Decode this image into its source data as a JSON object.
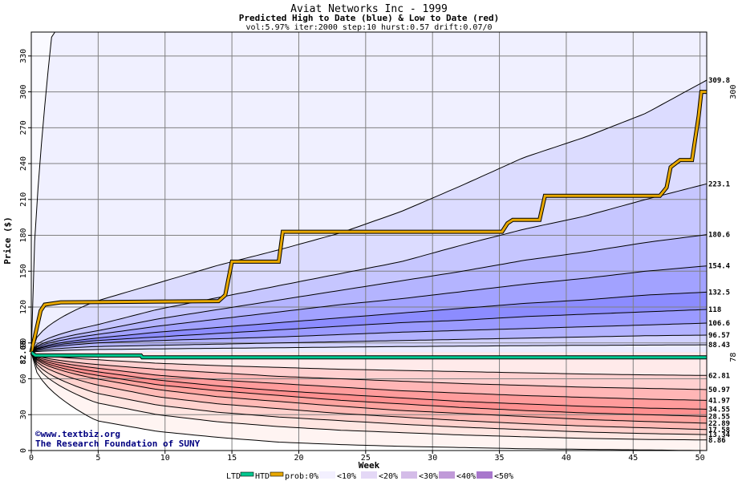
{
  "chart_data": {
    "type": "area",
    "title": "Aviat Networks Inc - 1999",
    "subtitle": "Predicted High to Date (blue) &  Low to Date (red)",
    "params": "vol:5.97% iter:2000 step:10 hurst:0.57 drift:0.07/0",
    "xlabel": "Week",
    "ylabel": "Price ($)",
    "xlim": [
      0,
      50.5
    ],
    "ylim": [
      0,
      350
    ],
    "x_ticks": [
      0,
      5,
      10,
      15,
      20,
      25,
      30,
      35,
      40,
      45,
      50
    ],
    "y_ticks": [
      0,
      30,
      60,
      90,
      120,
      150,
      180,
      210,
      240,
      270,
      300,
      330
    ],
    "start_price": 82.08,
    "start_label": "82.08",
    "grid": true,
    "high_curves": [
      {
        "end_label": "309.8",
        "values": [
          82.08,
          125,
          140,
          155,
          168,
          182,
          200,
          222,
          245,
          262,
          282,
          309.8
        ]
      },
      {
        "end_label": "223.1",
        "values": [
          82.08,
          105,
          118,
          128,
          138,
          148,
          158,
          172,
          185,
          196,
          210,
          223.1
        ]
      },
      {
        "end_label": "180.6",
        "values": [
          82.08,
          100,
          110,
          118,
          126,
          134,
          142,
          150,
          159,
          166,
          174,
          180.6
        ]
      },
      {
        "end_label": "154.4",
        "values": [
          82.08,
          97,
          104,
          110,
          116,
          122,
          127,
          133,
          139,
          144,
          150,
          154.4
        ]
      },
      {
        "end_label": "132.5",
        "values": [
          82.08,
          94,
          99,
          103,
          107,
          111,
          115,
          119,
          123,
          126,
          130,
          132.5
        ]
      },
      {
        "end_label": "118",
        "values": [
          82.08,
          92,
          95,
          98,
          101,
          104,
          107,
          109,
          112,
          114,
          116,
          118
        ]
      },
      {
        "end_label": "106.6",
        "values": [
          82.08,
          90,
          92,
          93.5,
          95,
          97,
          99,
          100.5,
          102,
          103.5,
          105,
          106.6
        ]
      },
      {
        "end_label": "96.57",
        "values": [
          82.08,
          87,
          88,
          89,
          90,
          91,
          92,
          93,
          94,
          95,
          96,
          96.57
        ]
      },
      {
        "end_label": "88.43",
        "values": [
          82.08,
          84.5,
          85,
          85.5,
          86,
          86.5,
          87,
          87.3,
          87.7,
          88,
          88.2,
          88.43
        ]
      }
    ],
    "low_curves": [
      {
        "end_label": "62.81",
        "values": [
          82.08,
          76,
          73,
          71,
          69.5,
          68,
          67,
          66,
          65,
          64,
          63.3,
          62.81
        ]
      },
      {
        "end_label": "50.97",
        "values": [
          82.08,
          72,
          68,
          65,
          62,
          60,
          58,
          56,
          54.5,
          53,
          52,
          50.97
        ]
      },
      {
        "end_label": "41.97",
        "values": [
          82.08,
          69,
          63,
          59,
          56,
          53,
          50,
          48,
          46,
          44.5,
          43,
          41.97
        ]
      },
      {
        "end_label": "34.55",
        "values": [
          82.08,
          66,
          59,
          54,
          50,
          47,
          44,
          41,
          39,
          37,
          35.5,
          34.55
        ]
      },
      {
        "end_label": "28.55",
        "values": [
          82.08,
          63,
          55,
          50,
          46,
          42,
          39,
          36,
          33.5,
          31.5,
          30,
          28.55
        ]
      },
      {
        "end_label": "22.89",
        "values": [
          82.08,
          60,
          51,
          45,
          41,
          37,
          33.5,
          31,
          28.5,
          26,
          24.3,
          22.89
        ]
      },
      {
        "end_label": "17.58",
        "values": [
          82.08,
          55,
          45,
          39,
          35,
          31,
          28,
          25,
          22.5,
          20.5,
          19,
          17.58
        ]
      },
      {
        "end_label": "13.34",
        "values": [
          82.08,
          48,
          38,
          32,
          28,
          25,
          22,
          19.5,
          17.5,
          15.5,
          14.2,
          13.34
        ]
      },
      {
        "end_label": "8.86",
        "values": [
          82.08,
          40,
          30,
          24,
          20,
          17,
          15,
          13,
          11.5,
          10.2,
          9.3,
          8.86
        ]
      }
    ],
    "outer_low_curve": {
      "values": [
        82.08,
        25,
        16,
        11,
        7,
        5,
        3.5,
        2.5,
        1.5,
        1,
        0.5,
        0
      ]
    },
    "htd": {
      "name": "HTD",
      "end_label": "300",
      "points": [
        [
          0,
          82.08
        ],
        [
          0.7,
          117
        ],
        [
          1,
          122
        ],
        [
          2.2,
          124
        ],
        [
          14,
          125
        ],
        [
          14.5,
          130
        ],
        [
          15,
          158
        ],
        [
          18.5,
          158
        ],
        [
          18.8,
          183
        ],
        [
          35.2,
          183
        ],
        [
          35.6,
          190
        ],
        [
          36,
          193
        ],
        [
          38,
          193
        ],
        [
          38.4,
          213
        ],
        [
          47,
          213
        ],
        [
          47.5,
          220
        ],
        [
          47.8,
          237
        ],
        [
          48.5,
          243
        ],
        [
          49.4,
          243
        ],
        [
          49.9,
          280
        ],
        [
          50.1,
          300
        ],
        [
          50.5,
          300
        ]
      ]
    },
    "ltd": {
      "name": "LTD",
      "end_label": "78",
      "points": [
        [
          0,
          82.08
        ],
        [
          0.3,
          79.5
        ],
        [
          8.2,
          79.5
        ],
        [
          8.3,
          78
        ],
        [
          50.5,
          78
        ]
      ]
    },
    "legend": {
      "ltd": "LTD",
      "htd": "HTD",
      "prob": "prob:0%",
      "buckets": [
        "<10%",
        "<20%",
        "<30%",
        "<40%",
        "<50%"
      ]
    },
    "credit_line1": "©www.textbiz.org",
    "credit_line2": "The Research Foundation of SUNY",
    "colors": {
      "htd_line": "#e8a800",
      "ltd_line": "#00c890",
      "blue_fills": [
        "#f0f0ff",
        "#dcdcff",
        "#c6c6ff",
        "#b4b4ff",
        "#a2a2ff",
        "#8c8cff",
        "#9a9aff",
        "#b2b2ff",
        "#d2d2ff",
        "#ececff"
      ],
      "red_fills": [
        "#fff0ee",
        "#ffe0dc",
        "#ffc8c4",
        "#ffb0ac",
        "#ff9c98",
        "#ff8c8c",
        "#ffa0a0",
        "#ffbcbc",
        "#ffd6d6",
        "#ffeeee"
      ]
    }
  }
}
